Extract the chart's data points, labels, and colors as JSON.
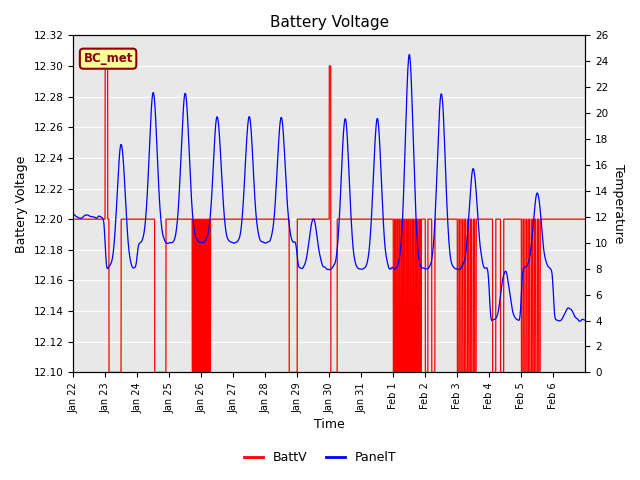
{
  "title": "Battery Voltage",
  "xlabel": "Time",
  "ylabel_left": "Battery Voltage",
  "ylabel_right": "Temperature",
  "ylim_left": [
    12.1,
    12.32
  ],
  "ylim_right": [
    0,
    26
  ],
  "yticks_left": [
    12.1,
    12.12,
    12.14,
    12.16,
    12.18,
    12.2,
    12.22,
    12.24,
    12.26,
    12.28,
    12.3,
    12.32
  ],
  "yticks_right": [
    0,
    2,
    4,
    6,
    8,
    10,
    12,
    14,
    16,
    18,
    20,
    22,
    24,
    26
  ],
  "xtick_labels": [
    "Jan 22",
    "Jan 23",
    "Jan 24",
    "Jan 25",
    "Jan 26",
    "Jan 27",
    "Jan 28",
    "Jan 29",
    "Jan 30",
    "Jan 31",
    "Feb 1",
    "Feb 2",
    "Feb 3",
    "Feb 4",
    "Feb 5",
    "Feb 6"
  ],
  "batt_color": "#FF0000",
  "panel_color": "#0000FF",
  "bg_color": "#E8E8E8",
  "annotation_text": "BC_met",
  "annotation_color": "#8B0000",
  "annotation_bg": "#FFFF99",
  "grid_color": "#FFFFFF"
}
